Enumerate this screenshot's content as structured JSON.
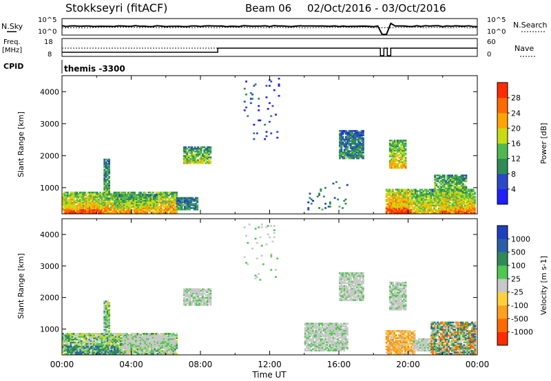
{
  "header": {
    "station": "Stokkseyri (fitACF)",
    "beam": "Beam 06",
    "date_range": "02/Oct/2016 - 03/Oct/2016"
  },
  "top_panels": {
    "nsky_label": "N.Sky",
    "nsearch_label": "N.Search",
    "freq_label_1": "Freq.",
    "freq_label_2": "[MHz]",
    "nave_label": "Nave",
    "cpid_label": "CPID",
    "noise_left_ticks": [
      "10^5",
      "10^0"
    ],
    "noise_right_ticks": [
      "10^5",
      "10^0"
    ],
    "freq_left_ticks": [
      "18",
      "8"
    ],
    "freq_right_ticks": [
      "60",
      "0"
    ],
    "cpid_text": "themis -3300"
  },
  "chart_data": [
    {
      "type": "heatmap",
      "panel": "power",
      "ylabel": "Slant Range [km]",
      "ylim": [
        180,
        4500
      ],
      "yticks": [
        1000,
        2000,
        3000,
        4000
      ],
      "xlim_hours": [
        0,
        24
      ],
      "colorbar": {
        "label": "Power [dB]",
        "ticks": [
          "4",
          "8",
          "12",
          "16",
          "20",
          "24",
          "28"
        ],
        "colors": [
          "#1f1fff",
          "#2a48c8",
          "#2e8b57",
          "#4fb84f",
          "#c8dc14",
          "#ffa500",
          "#ff6a00",
          "#ff2a00"
        ]
      },
      "patches": [
        {
          "t0": 0.0,
          "t1": 6.6,
          "r0": 200,
          "r1": 850,
          "intensity": 0.7
        },
        {
          "t0": 0.2,
          "t1": 2.2,
          "r0": 200,
          "r1": 450,
          "intensity": 0.9
        },
        {
          "t0": 3.0,
          "t1": 5.5,
          "r0": 350,
          "r1": 800,
          "intensity": 0.5
        },
        {
          "t0": 2.4,
          "t1": 2.7,
          "r0": 600,
          "r1": 1900,
          "intensity": 0.4
        },
        {
          "t0": 7.0,
          "t1": 8.6,
          "r0": 1750,
          "r1": 2250,
          "intensity": 0.5
        },
        {
          "t0": 6.6,
          "t1": 7.8,
          "r0": 300,
          "r1": 700,
          "intensity": 0.3
        },
        {
          "t0": 14.0,
          "t1": 16.5,
          "r0": 300,
          "r1": 1200,
          "intensity": 0.2
        },
        {
          "t0": 16.0,
          "t1": 17.4,
          "r0": 1900,
          "r1": 2800,
          "intensity": 0.3
        },
        {
          "t0": 18.9,
          "t1": 19.8,
          "r0": 1600,
          "r1": 2500,
          "intensity": 0.6
        },
        {
          "t0": 18.7,
          "t1": 20.2,
          "r0": 200,
          "r1": 950,
          "intensity": 0.8
        },
        {
          "t0": 18.9,
          "t1": 20.0,
          "r0": 200,
          "r1": 500,
          "intensity": 0.95
        },
        {
          "t0": 20.2,
          "t1": 23.8,
          "r0": 200,
          "r1": 950,
          "intensity": 0.6
        },
        {
          "t0": 21.5,
          "t1": 23.3,
          "r0": 600,
          "r1": 1400,
          "intensity": 0.5
        },
        {
          "t0": 21.8,
          "t1": 23.8,
          "r0": 200,
          "r1": 450,
          "intensity": 0.85
        },
        {
          "t0": 10.5,
          "t1": 12.5,
          "r0": 2500,
          "r1": 4400,
          "intensity": 0.1
        }
      ]
    },
    {
      "type": "heatmap",
      "panel": "velocity",
      "ylabel": "Slant Range [km]",
      "ylim": [
        180,
        4500
      ],
      "yticks": [
        1000,
        2000,
        3000,
        4000
      ],
      "xlabel": "Time UT",
      "xlim_hours": [
        0,
        24
      ],
      "xtick_labels": [
        "00:00",
        "04:00",
        "08:00",
        "12:00",
        "16:00",
        "20:00",
        "00:00"
      ],
      "colorbar": {
        "label": "Velocity [m s-1]",
        "ticks": [
          "1000",
          "500",
          "100",
          "25",
          "-25",
          "-100",
          "-500",
          "-1000"
        ],
        "colors": [
          "#1f3fbf",
          "#2a5fa8",
          "#2e8b57",
          "#4fc84f",
          "#c8c8c8",
          "#ffd23c",
          "#ffa01e",
          "#ff6a00",
          "#ff2a00"
        ]
      },
      "patches": [
        {
          "t0": 0.0,
          "t1": 6.6,
          "r0": 200,
          "r1": 850,
          "mode": "grey_green"
        },
        {
          "t0": 0.2,
          "t1": 3.2,
          "r0": 200,
          "r1": 450,
          "mode": "green"
        },
        {
          "t0": 3.5,
          "t1": 6.5,
          "r0": 400,
          "r1": 800,
          "mode": "grey"
        },
        {
          "t0": 2.4,
          "t1": 2.7,
          "r0": 600,
          "r1": 1900,
          "mode": "grey_green"
        },
        {
          "t0": 7.0,
          "t1": 8.6,
          "r0": 1750,
          "r1": 2250,
          "mode": "grey"
        },
        {
          "t0": 14.0,
          "t1": 16.5,
          "r0": 300,
          "r1": 1200,
          "mode": "grey"
        },
        {
          "t0": 16.0,
          "t1": 17.4,
          "r0": 1900,
          "r1": 2800,
          "mode": "grey"
        },
        {
          "t0": 18.9,
          "t1": 19.8,
          "r0": 1600,
          "r1": 2500,
          "mode": "grey"
        },
        {
          "t0": 18.7,
          "t1": 20.4,
          "r0": 200,
          "r1": 950,
          "mode": "orange"
        },
        {
          "t0": 20.3,
          "t1": 21.3,
          "r0": 300,
          "r1": 700,
          "mode": "grey"
        },
        {
          "t0": 21.3,
          "t1": 23.9,
          "r0": 200,
          "r1": 1200,
          "mode": "mixed"
        },
        {
          "t0": 10.5,
          "t1": 12.5,
          "r0": 2500,
          "r1": 4400,
          "mode": "grey"
        }
      ]
    }
  ]
}
